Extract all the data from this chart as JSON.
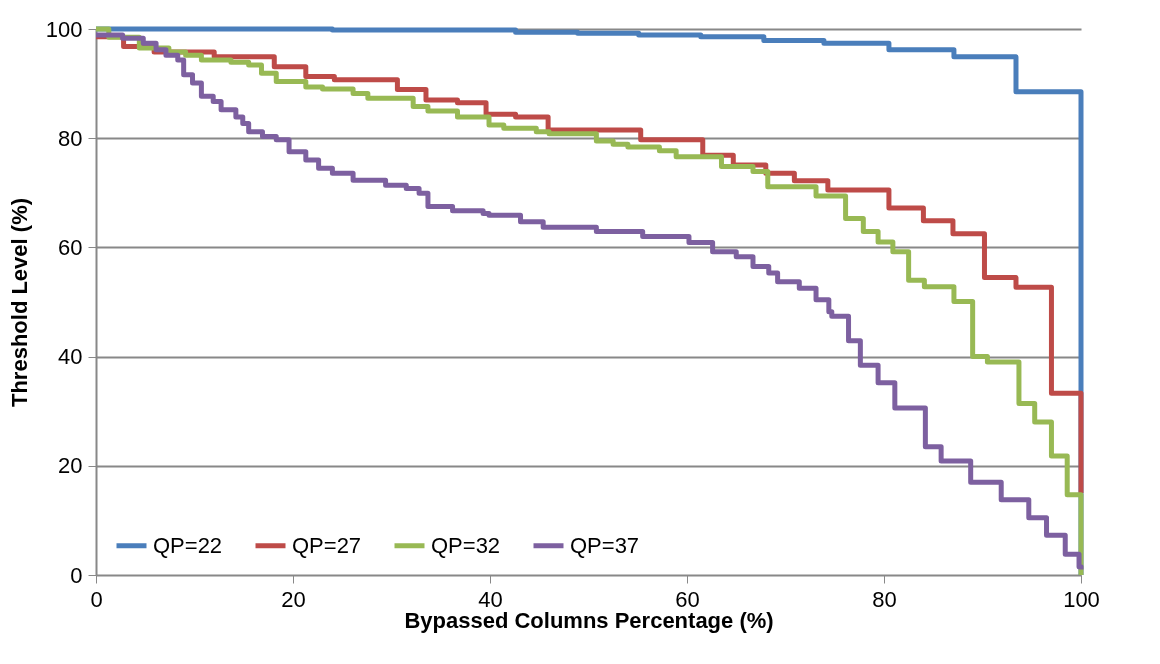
{
  "chart_data": {
    "type": "step",
    "xlabel": "Bypassed Columns Percentage (%)",
    "ylabel": "Threshold Level (%)",
    "xlim": [
      0,
      100
    ],
    "xticks": [
      0,
      20,
      40,
      60,
      80,
      100
    ],
    "ylim": [
      0,
      100
    ],
    "yticks": [
      0,
      20,
      40,
      60,
      80,
      100
    ],
    "grid": "y",
    "legend": "bottom",
    "line_style": "solid",
    "marker": "none",
    "series": [
      {
        "name": "QP=22",
        "color": "#4a7ebb",
        "x": [
          0,
          24,
          42.6,
          48.9,
          55.1,
          61.4,
          67.8,
          73.9,
          80.5,
          87.1,
          93.4,
          100
        ],
        "values": [
          100,
          99.8,
          99.4,
          99.2,
          98.9,
          98.6,
          97.9,
          97.4,
          96.2,
          94.9,
          88.5,
          0
        ]
      },
      {
        "name": "QP=27",
        "color": "#be4b48",
        "x": [
          0,
          2.8,
          5.9,
          12,
          18.1,
          21.3,
          24.2,
          30.6,
          33.5,
          36.7,
          39.6,
          42.6,
          45.9,
          55.3,
          61.6,
          64.7,
          68,
          70.9,
          74.3,
          80.5,
          84,
          87,
          90.2,
          93.4,
          97,
          100
        ],
        "values": [
          98.6,
          96.8,
          95.8,
          94.9,
          93.1,
          91.3,
          90.7,
          88.9,
          87,
          86.5,
          84.4,
          83.9,
          81.5,
          79.7,
          76.9,
          75.1,
          73.6,
          72.2,
          70.5,
          67.2,
          64.9,
          62.5,
          54.5,
          52.7,
          33.3,
          15
        ]
      },
      {
        "name": "QP=32",
        "color": "#98b954",
        "x": [
          0,
          1.3,
          4.4,
          7.4,
          9.1,
          10.7,
          13.7,
          15.5,
          16.8,
          18.3,
          21.3,
          23,
          26.1,
          27.6,
          32.2,
          33.7,
          36.7,
          39.9,
          41.4,
          44.7,
          46,
          50.8,
          52.5,
          54,
          57.2,
          58.9,
          63.5,
          66.7,
          68.2,
          73.1,
          76.1,
          77.9,
          79.4,
          80.9,
          82.5,
          84.1,
          87.1,
          89,
          90.5,
          93.7,
          95.3,
          97,
          98.6,
          100
        ],
        "values": [
          100,
          98.5,
          96.5,
          95.8,
          95.2,
          94.3,
          93.9,
          93.4,
          91.9,
          90.4,
          89.4,
          89,
          88.2,
          87.3,
          85.8,
          85,
          83.9,
          82.4,
          81.8,
          81.2,
          80.8,
          79.5,
          78.9,
          78.4,
          77.7,
          76.6,
          74.8,
          73.9,
          71.1,
          69.4,
          65.3,
          62.9,
          61,
          59.2,
          54,
          52.8,
          50.1,
          40,
          39,
          31.4,
          28,
          21.8,
          14.7,
          0
        ]
      },
      {
        "name": "QP=37",
        "color": "#7d60a0",
        "x": [
          0,
          2.7,
          4.8,
          6.1,
          7.1,
          8.3,
          8.9,
          9.8,
          10.7,
          11.9,
          12.7,
          14.2,
          14.9,
          15.5,
          16.9,
          18.3,
          19.6,
          21.3,
          22.6,
          24,
          26.1,
          29.4,
          31.5,
          32.8,
          33.7,
          36.2,
          39.3,
          39.9,
          43.1,
          45.4,
          50.8,
          55.5,
          60.2,
          62.6,
          65,
          66.7,
          68.3,
          69.2,
          71.4,
          73.1,
          74.4,
          74.7,
          76.4,
          77.6,
          79.4,
          81.1,
          84.2,
          85.8,
          88.8,
          91.9,
          94.7,
          96.5,
          98.4,
          99.8,
          100
        ],
        "values": [
          98.9,
          98.3,
          97.4,
          96.2,
          95.2,
          94.3,
          91.6,
          90.1,
          87.7,
          86.7,
          85.2,
          83.9,
          82.7,
          81.2,
          80.3,
          79.7,
          77.5,
          76,
          74.5,
          73.6,
          72.3,
          71.4,
          70.8,
          69.9,
          67.5,
          66.7,
          66.2,
          65.9,
          64.7,
          63.7,
          62.9,
          62,
          60.9,
          59.2,
          58.3,
          56.5,
          55.3,
          53.7,
          52.5,
          50.4,
          48.2,
          47.4,
          42.9,
          38.4,
          35.2,
          30.6,
          23.5,
          20.9,
          17,
          13.8,
          10.5,
          7.3,
          3.8,
          1.5,
          1
        ]
      }
    ]
  }
}
